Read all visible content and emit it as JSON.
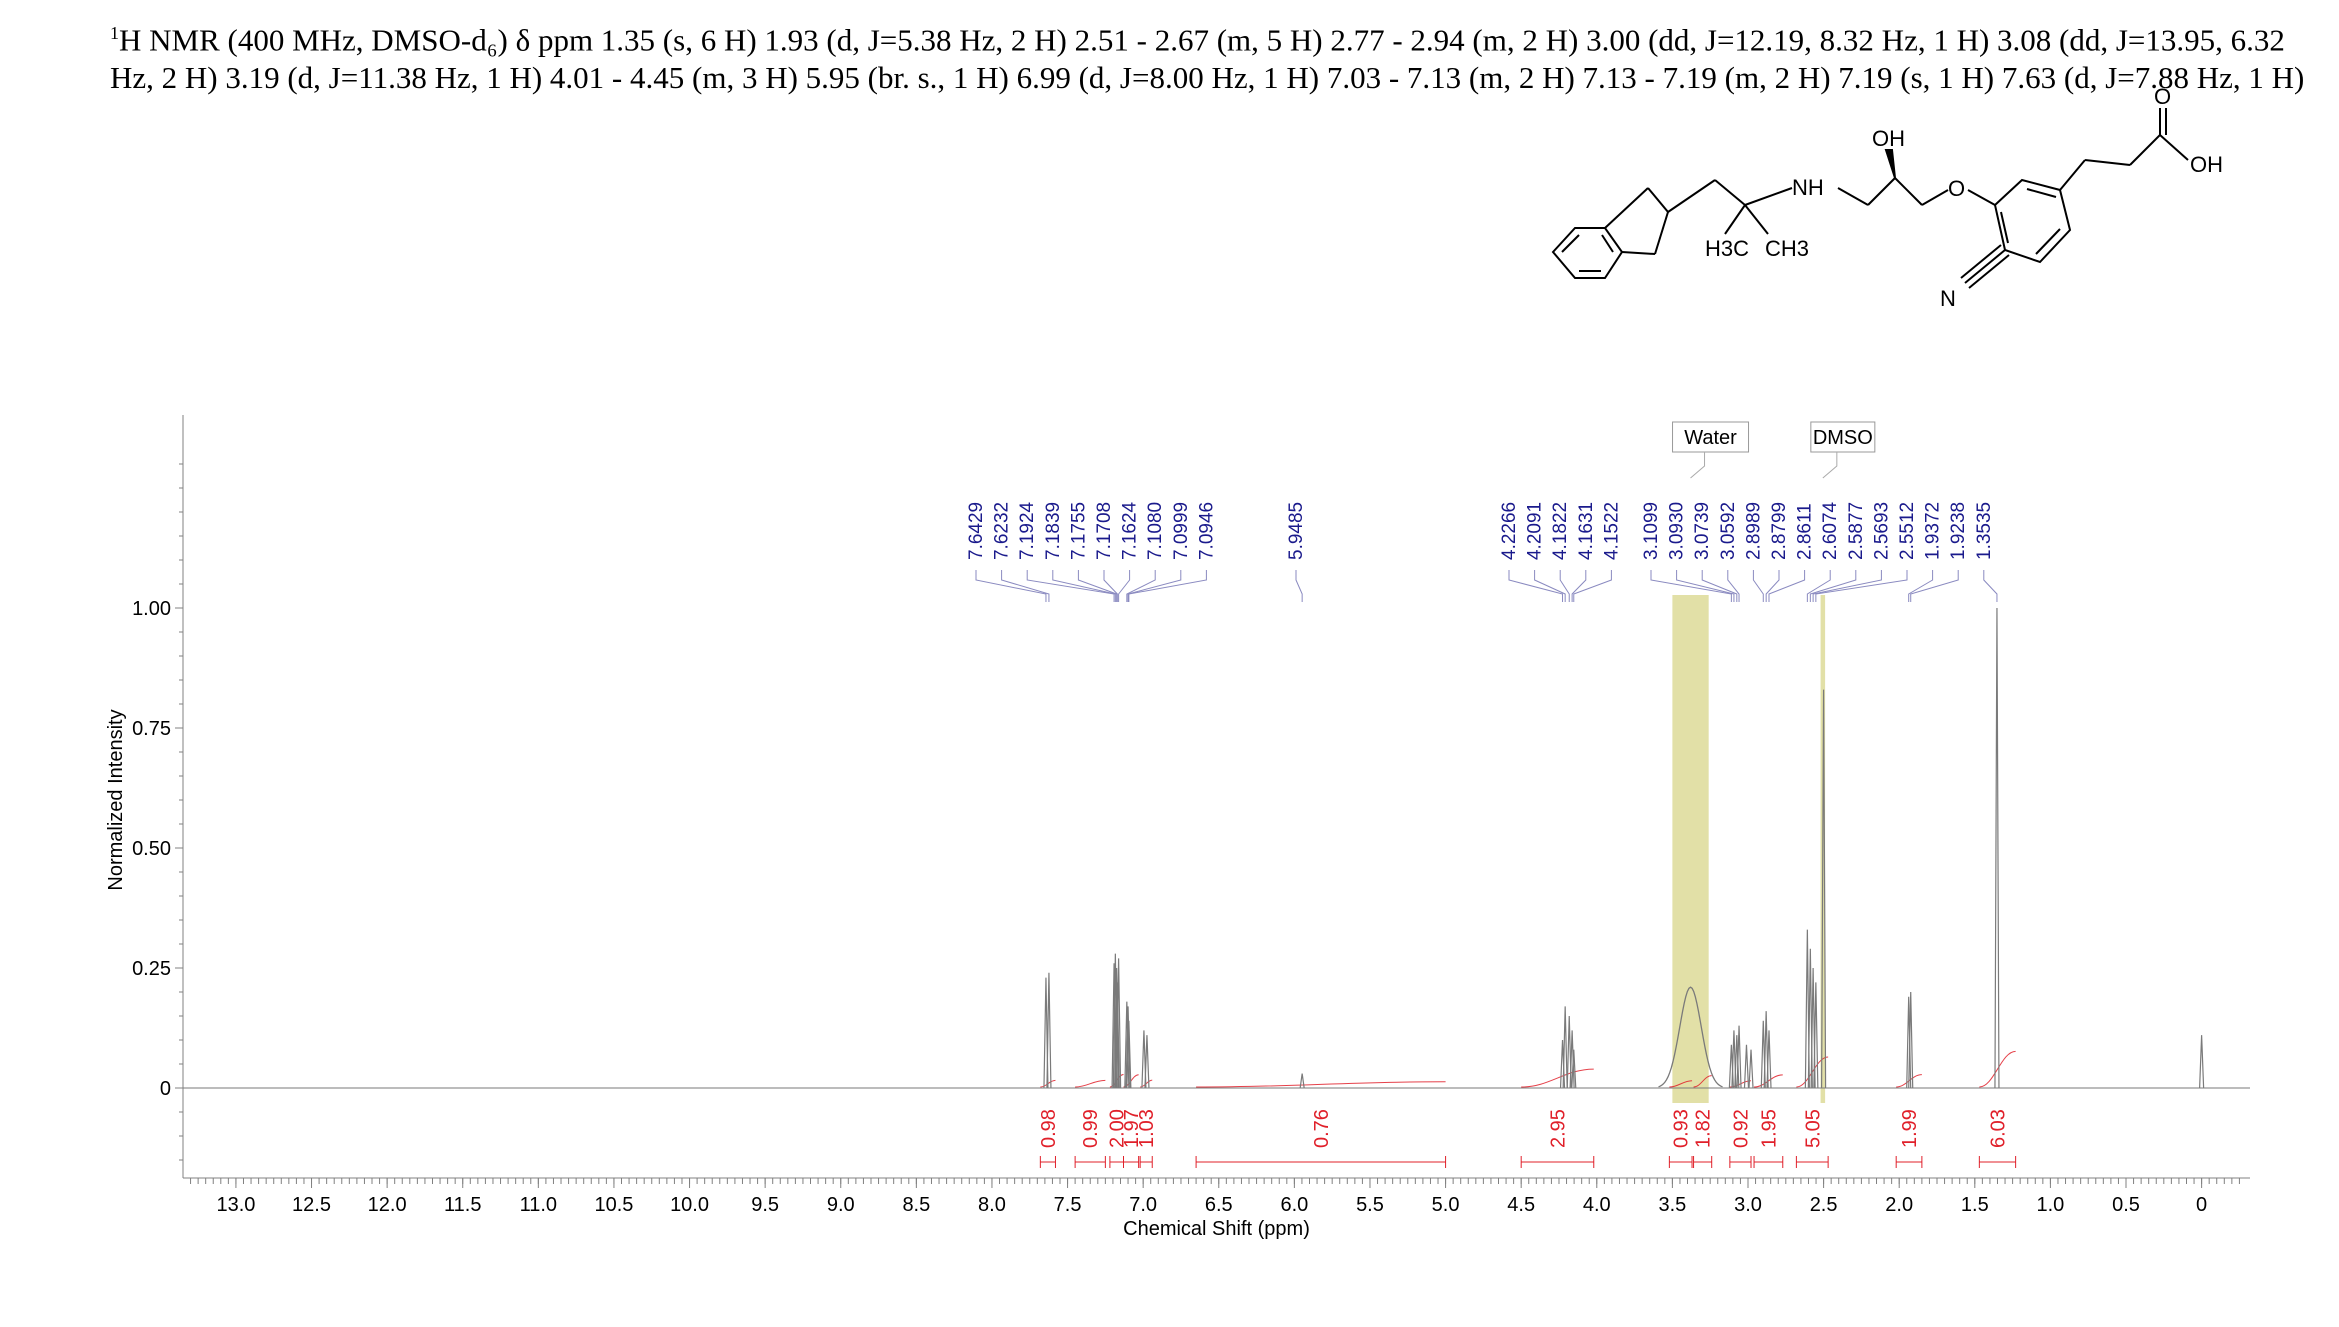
{
  "header": {
    "nucleus_sup": "1",
    "text": "H NMR (400 MHz, DMSO-d₆) δ ppm 1.35 (s, 6 H) 1.93 (d, J=5.38 Hz, 2 H) 2.51 - 2.67 (m, 5 H) 2.77 - 2.94 (m, 2 H) 3.00 (dd, J=12.19, 8.32 Hz, 1 H) 3.08 (dd, J=13.95, 6.32 Hz, 2 H) 3.19 (d, J=11.38 Hz, 1 H) 4.01 - 4.45 (m, 3 H) 5.95 (br. s., 1 H) 6.99 (d, J=8.00 Hz, 1 H) 7.03 - 7.13 (m, 2 H) 7.13 - 7.19 (m, 2 H) 7.19 (s, 1 H) 7.63 (d, J=7.88 Hz, 1 H)"
  },
  "structure_labels": {
    "oh": "OH",
    "nh": "NH",
    "o_ether": "O",
    "o_carbonyl": "O",
    "oh_acid": "OH",
    "h3c": "H3C",
    "ch3": "CH3",
    "n": "N"
  },
  "chart_data": {
    "type": "line",
    "xlabel": "Chemical Shift (ppm)",
    "ylabel": "Normalized Intensity",
    "xlim": [
      13.35,
      -0.32
    ],
    "ylim": [
      -0.17,
      1.4
    ],
    "x_ticks": [
      13.0,
      12.5,
      12.0,
      11.5,
      11.0,
      10.5,
      10.0,
      9.5,
      9.0,
      8.5,
      8.0,
      7.5,
      7.0,
      6.5,
      6.0,
      5.5,
      5.0,
      4.5,
      4.0,
      3.5,
      3.0,
      2.5,
      2.0,
      1.5,
      1.0,
      0.5,
      0
    ],
    "x_tick_labels": [
      "13.0",
      "12.5",
      "12.0",
      "11.5",
      "11.0",
      "10.5",
      "10.0",
      "9.5",
      "9.0",
      "8.5",
      "8.0",
      "7.5",
      "7.0",
      "6.5",
      "6.0",
      "5.5",
      "5.0",
      "4.5",
      "4.0",
      "3.5",
      "3.0",
      "2.5",
      "2.0",
      "1.5",
      "1.0",
      "0.5",
      "0"
    ],
    "y_ticks": [
      0,
      0.25,
      0.5,
      0.75,
      1.0
    ],
    "y_tick_labels": [
      "0",
      "0.25",
      "0.50",
      "0.75",
      "1.00"
    ],
    "peaks": [
      {
        "x": 7.6429,
        "h": 0.23
      },
      {
        "x": 7.6232,
        "h": 0.24
      },
      {
        "x": 7.1924,
        "h": 0.26
      },
      {
        "x": 7.1839,
        "h": 0.28
      },
      {
        "x": 7.1755,
        "h": 0.25
      },
      {
        "x": 7.1708,
        "h": 0.22
      },
      {
        "x": 7.1624,
        "h": 0.27
      },
      {
        "x": 7.108,
        "h": 0.18
      },
      {
        "x": 7.0999,
        "h": 0.17
      },
      {
        "x": 7.0946,
        "h": 0.14
      },
      {
        "x": 6.995,
        "h": 0.12
      },
      {
        "x": 6.975,
        "h": 0.11
      },
      {
        "x": 5.9485,
        "h": 0.03
      },
      {
        "x": 4.2266,
        "h": 0.1
      },
      {
        "x": 4.2091,
        "h": 0.17
      },
      {
        "x": 4.1822,
        "h": 0.15
      },
      {
        "x": 4.1631,
        "h": 0.12
      },
      {
        "x": 4.1522,
        "h": 0.08
      },
      {
        "x": 3.1099,
        "h": 0.09
      },
      {
        "x": 3.093,
        "h": 0.12
      },
      {
        "x": 3.0739,
        "h": 0.11
      },
      {
        "x": 3.0592,
        "h": 0.13
      },
      {
        "x": 3.01,
        "h": 0.09
      },
      {
        "x": 2.98,
        "h": 0.08
      },
      {
        "x": 2.8989,
        "h": 0.14
      },
      {
        "x": 2.8799,
        "h": 0.16
      },
      {
        "x": 2.8611,
        "h": 0.12
      },
      {
        "x": 2.6074,
        "h": 0.33
      },
      {
        "x": 2.5877,
        "h": 0.29
      },
      {
        "x": 2.5693,
        "h": 0.25
      },
      {
        "x": 2.5512,
        "h": 0.22
      },
      {
        "x": 2.5,
        "h": 0.83
      },
      {
        "x": 1.9372,
        "h": 0.19
      },
      {
        "x": 1.9238,
        "h": 0.2
      },
      {
        "x": 1.3535,
        "h": 1.0
      },
      {
        "x": 0.0,
        "h": 0.11
      }
    ],
    "broad_peaks": [
      {
        "x": 3.38,
        "h": 0.21
      }
    ],
    "peak_labels": {
      "group1": [
        "7.6429",
        "7.6232",
        "7.1924",
        "7.1839",
        "7.1755",
        "7.1708",
        "7.1624",
        "7.1080",
        "7.0999",
        "7.0946"
      ],
      "group2": [
        "5.9485"
      ],
      "group3": [
        "4.2266",
        "4.2091",
        "4.1822",
        "4.1631",
        "4.1522"
      ],
      "group4": [
        "3.1099",
        "3.0930",
        "3.0739",
        "3.0592",
        "2.8989",
        "2.8799",
        "2.8611",
        "2.6074",
        "2.5877",
        "2.5693",
        "2.5512",
        "1.9372",
        "1.9238",
        "1.3535"
      ]
    },
    "integrals": [
      {
        "from": 7.68,
        "to": 7.58,
        "value": "0.98"
      },
      {
        "from": 7.45,
        "to": 7.25,
        "value": "0.99"
      },
      {
        "from": 7.22,
        "to": 7.13,
        "value": "2.00"
      },
      {
        "from": 7.13,
        "to": 7.03,
        "value": "1.97"
      },
      {
        "from": 7.02,
        "to": 6.94,
        "value": "1.03"
      },
      {
        "from": 6.65,
        "to": 5.0,
        "value": "0.76"
      },
      {
        "from": 4.5,
        "to": 4.02,
        "value": "2.95"
      },
      {
        "from": 3.52,
        "to": 3.37,
        "value": "0.93"
      },
      {
        "from": 3.36,
        "to": 3.24,
        "value": "1.82"
      },
      {
        "from": 3.12,
        "to": 2.98,
        "value": "0.92"
      },
      {
        "from": 2.96,
        "to": 2.77,
        "value": "1.95"
      },
      {
        "from": 2.68,
        "to": 2.47,
        "value": "5.05"
      },
      {
        "from": 2.02,
        "to": 1.85,
        "value": "1.99"
      },
      {
        "from": 1.47,
        "to": 1.23,
        "value": "6.03"
      }
    ],
    "solvent_regions": [
      {
        "from": 3.5,
        "to": 3.26,
        "label": "Water"
      },
      {
        "from": 2.52,
        "to": 2.49,
        "label": "DMSO"
      }
    ],
    "colors": {
      "spectrum": "#7a7a7a",
      "peak_labels": "#1a1a8c",
      "integrals": "#e0202a",
      "solvent_band": "#d8d58a",
      "axis": "#808080"
    }
  }
}
